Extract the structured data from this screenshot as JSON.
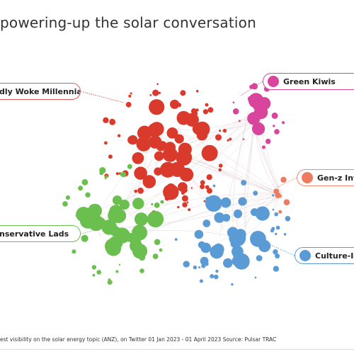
{
  "title": "powering-up the solar conversation",
  "footnote": "est visibility on the solar energy topic (ANZ), on Twitter 01 Jan 2023 - 01 April 2023 Source: Pulsar TRAC",
  "chart_data": {
    "type": "scatter",
    "subtype": "audience network map",
    "clusters": [
      {
        "name": "dly Woke Millennials",
        "color": "#d93a2b",
        "node_count": 95
      },
      {
        "name": "Green Kiwis",
        "color": "#d9449d",
        "node_count": 20
      },
      {
        "name": "Gen-z Inv",
        "color": "#ee7b5f",
        "node_count": 6
      },
      {
        "name": "nservative Lads",
        "color": "#6bbf4e",
        "node_count": 60
      },
      {
        "name": "Culture-Ic",
        "color": "#5b9bd5",
        "node_count": 55
      }
    ]
  },
  "callouts": [
    {
      "label": "dly Woke Millennials",
      "color": "#d93a2b"
    },
    {
      "label": "Green Kiwis",
      "color": "#d9449d"
    },
    {
      "label": "Gen-z Inv",
      "color": "#ee7b5f"
    },
    {
      "label": "nservative Lads",
      "color": "#6bbf4e"
    },
    {
      "label": "Culture-Ic",
      "color": "#5b9bd5"
    }
  ]
}
